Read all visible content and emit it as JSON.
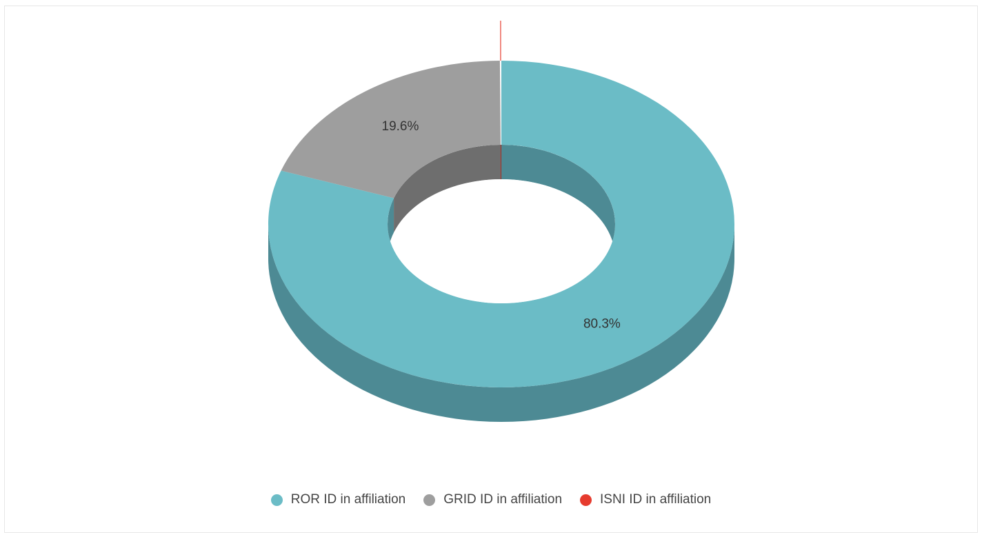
{
  "chart_data": {
    "type": "pie",
    "variant": "3d-donut",
    "categories": [
      "ROR ID in affiliation",
      "GRID ID in affiliation",
      "ISNI ID in affiliation"
    ],
    "values": [
      80.3,
      19.6,
      0.1
    ],
    "value_labels": [
      "80.3%",
      "19.6%",
      ""
    ],
    "colors": [
      "#6bbcc6",
      "#9e9e9e",
      "#e63b2e"
    ],
    "side_colors": [
      "#4d8a94",
      "#6e6e6e",
      "#a32a20"
    ],
    "legend_position": "bottom"
  },
  "legend": {
    "items": [
      {
        "label": "ROR ID in affiliation",
        "color": "#6bbcc6"
      },
      {
        "label": "GRID ID in affiliation",
        "color": "#9e9e9e"
      },
      {
        "label": "ISNI ID in affiliation",
        "color": "#e63b2e"
      }
    ]
  }
}
